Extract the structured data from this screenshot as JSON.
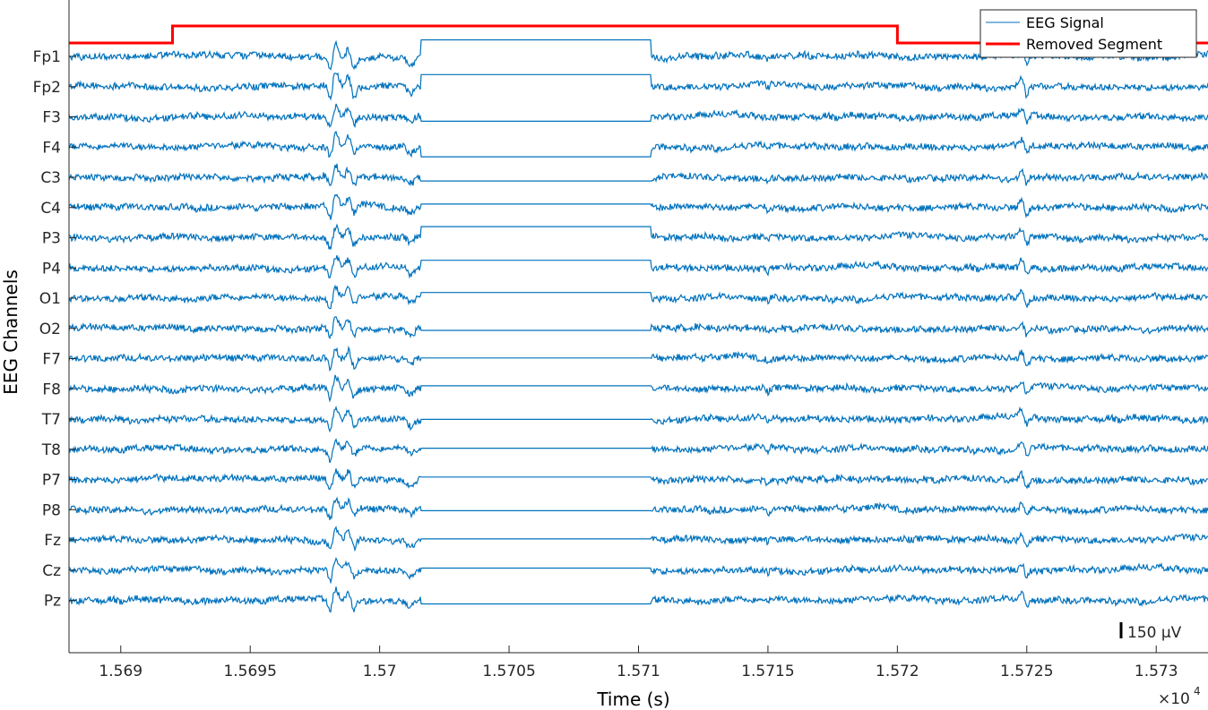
{
  "chart_data": {
    "type": "line",
    "title": "",
    "xlabel": "Time (s)",
    "ylabel": "EEG Channels",
    "x_exponent_label": "×10",
    "x_exponent_power": "4",
    "xlim": [
      15688,
      15732
    ],
    "x_ticks": [
      15690,
      15695,
      15700,
      15705,
      15710,
      15715,
      15720,
      15725,
      15730
    ],
    "x_tick_labels": [
      "1.569",
      "1.5695",
      "1.57",
      "1.5705",
      "1.571",
      "1.5715",
      "1.572",
      "1.5725",
      "1.573"
    ],
    "channels": [
      "Fp1",
      "Fp2",
      "F3",
      "F4",
      "C3",
      "C4",
      "P3",
      "P4",
      "O1",
      "O2",
      "F7",
      "F8",
      "T7",
      "T8",
      "P7",
      "P8",
      "Fz",
      "Cz",
      "Pz"
    ],
    "channel_spacing_uV": 150,
    "scale_bar": {
      "label": "150 μV",
      "value_uV": 150
    },
    "legend": {
      "position": "top-right",
      "entries": [
        "EEG Signal",
        "Removed Segment"
      ]
    },
    "series": [
      {
        "name": "EEG Signal",
        "color": "#0072BD",
        "flat_interval": [
          15701.6,
          15710.5
        ],
        "flat_level_offsets_uV": [
          82,
          60,
          -22,
          -48,
          -18,
          17,
          55,
          38,
          28,
          -10,
          3,
          15,
          -2,
          5,
          12,
          -5,
          5,
          10,
          -18
        ]
      },
      {
        "name": "Removed Segment",
        "color": "#FF0000",
        "x": [
          15688,
          15692,
          15692,
          15720,
          15720,
          15732
        ],
        "y": [
          0,
          0,
          1,
          1,
          0,
          0
        ]
      }
    ],
    "grid": false
  }
}
